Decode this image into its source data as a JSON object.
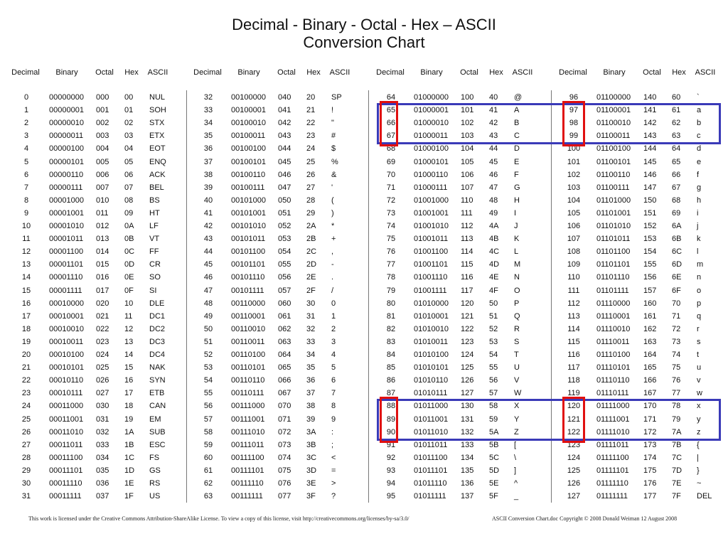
{
  "title_line1": "Decimal - Binary - Octal - Hex – ASCII",
  "title_line2": "Conversion Chart",
  "headers": [
    "Decimal",
    "Binary",
    "Octal",
    "Hex",
    "ASCII"
  ],
  "ascii_names": [
    "NUL",
    "SOH",
    "STX",
    "ETX",
    "EOT",
    "ENQ",
    "ACK",
    "BEL",
    "BS",
    "HT",
    "LF",
    "VT",
    "FF",
    "CR",
    "SO",
    "SI",
    "DLE",
    "DC1",
    "DC2",
    "DC3",
    "DC4",
    "NAK",
    "SYN",
    "ETB",
    "CAN",
    "EM",
    "SUB",
    "ESC",
    "FS",
    "GS",
    "RS",
    "US",
    "SP",
    "!",
    "\"",
    "#",
    "$",
    "%",
    "&",
    "'",
    "(",
    ")",
    "*",
    "+",
    ",",
    "-",
    ".",
    "/",
    "0",
    "1",
    "2",
    "3",
    "4",
    "5",
    "6",
    "7",
    "8",
    "9",
    ":",
    ";",
    "<",
    "=",
    ">",
    "?",
    "@",
    "A",
    "B",
    "C",
    "D",
    "E",
    "F",
    "G",
    "H",
    "I",
    "J",
    "K",
    "L",
    "M",
    "N",
    "O",
    "P",
    "Q",
    "R",
    "S",
    "T",
    "U",
    "V",
    "W",
    "X",
    "Y",
    "Z",
    "[",
    "\\",
    "]",
    "^",
    "_",
    "`",
    "a",
    "b",
    "c",
    "d",
    "e",
    "f",
    "g",
    "h",
    "i",
    "j",
    "k",
    "l",
    "m",
    "n",
    "o",
    "p",
    "q",
    "r",
    "s",
    "t",
    "u",
    "v",
    "w",
    "x",
    "y",
    "z",
    "{",
    "|",
    "}",
    "~",
    "DEL"
  ],
  "footer_left": "This work is licensed under the Creative Commons Attribution-ShareAlike License.  To view a copy of this license, visit  http://creativecommons.org/licenses/by-sa/3.0/",
  "footer_right": "ASCII Conversion Chart.doc    Copyright © 2008    Donald Weiman   12 August 2008",
  "highlight_colors": {
    "red": "#e01010",
    "blue": "#3a3ab8"
  }
}
